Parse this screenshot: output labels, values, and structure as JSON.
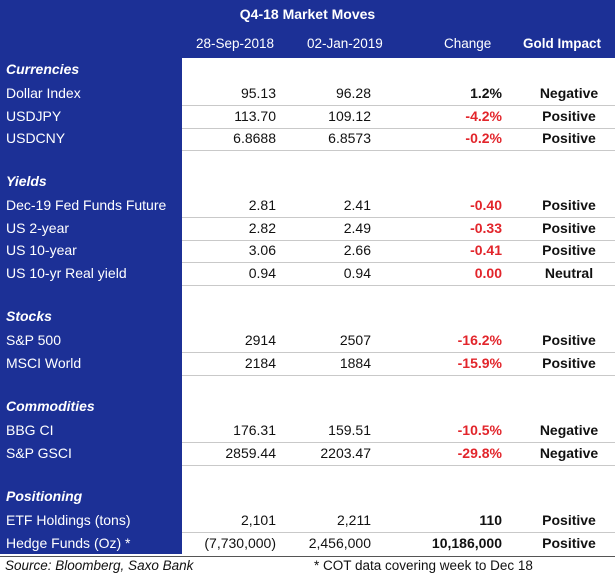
{
  "title": "Q4-18 Market Moves",
  "columns": {
    "date1": "28-Sep-2018",
    "date2": "02-Jan-2019",
    "change": "Change",
    "impact": "Gold Impact"
  },
  "sections": [
    {
      "name": "Currencies",
      "rows": [
        {
          "label": "Dollar Index",
          "v1": "95.13",
          "v2": "96.28",
          "chg": "1.2%",
          "chg_color": "black",
          "impact": "Negative"
        },
        {
          "label": "USDJPY",
          "v1": "113.70",
          "v2": "109.12",
          "chg": "-4.2%",
          "chg_color": "red",
          "impact": "Positive"
        },
        {
          "label": "USDCNY",
          "v1": "6.8688",
          "v2": "6.8573",
          "chg": "-0.2%",
          "chg_color": "red",
          "impact": "Positive"
        }
      ]
    },
    {
      "name": "Yields",
      "rows": [
        {
          "label": "Dec-19 Fed Funds Future",
          "v1": "2.81",
          "v2": "2.41",
          "chg": "-0.40",
          "chg_color": "red",
          "impact": "Positive"
        },
        {
          "label": "US 2-year",
          "v1": "2.82",
          "v2": "2.49",
          "chg": "-0.33",
          "chg_color": "red",
          "impact": "Positive"
        },
        {
          "label": "US 10-year",
          "v1": "3.06",
          "v2": "2.66",
          "chg": "-0.41",
          "chg_color": "red",
          "impact": "Positive"
        },
        {
          "label": "US 10-yr Real yield",
          "v1": "0.94",
          "v2": "0.94",
          "chg": "0.00",
          "chg_color": "red",
          "impact": "Neutral"
        }
      ]
    },
    {
      "name": "Stocks",
      "rows": [
        {
          "label": "S&P 500",
          "v1": "2914",
          "v2": "2507",
          "chg": "-16.2%",
          "chg_color": "red",
          "impact": "Positive"
        },
        {
          "label": "MSCI World",
          "v1": "2184",
          "v2": "1884",
          "chg": "-15.9%",
          "chg_color": "red",
          "impact": "Positive"
        }
      ]
    },
    {
      "name": "Commodities",
      "rows": [
        {
          "label": "BBG CI",
          "v1": "176.31",
          "v2": "159.51",
          "chg": "-10.5%",
          "chg_color": "red",
          "impact": "Negative"
        },
        {
          "label": "S&P GSCI",
          "v1": "2859.44",
          "v2": "2203.47",
          "chg": "-29.8%",
          "chg_color": "red",
          "impact": "Negative"
        }
      ]
    },
    {
      "name": "Positioning",
      "rows": [
        {
          "label": "ETF Holdings (tons)",
          "v1": "2,101",
          "v2": "2,211",
          "chg": "110",
          "chg_color": "black",
          "impact": "Positive"
        },
        {
          "label": "Hedge Funds (Oz) *",
          "v1": "(7,730,000)",
          "v2": "2,456,000",
          "chg": "10,186,000",
          "chg_color": "black",
          "impact": "Positive"
        }
      ]
    }
  ],
  "footer": {
    "source": "Source: Bloomberg, Saxo Bank",
    "note": "* COT data covering week to Dec 18"
  },
  "colors": {
    "header_blue": "#1c3096",
    "negative_red": "#e2252b"
  }
}
